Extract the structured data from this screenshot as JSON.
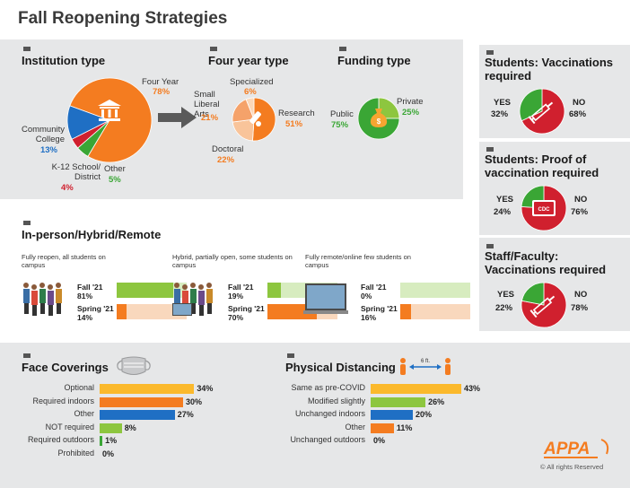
{
  "page_title": "Fall Reopening Strategies",
  "sections": {
    "institution_type": "Institution type",
    "four_year_type": "Four year type",
    "funding_type": "Funding type",
    "in_person": "In-person/Hybrid/Remote",
    "face_coverings": "Face Coverings",
    "physical_distancing": "Physical Distancing",
    "students_vacc": "Students: Vaccinations required",
    "students_proof": "Students: Proof of vaccination required",
    "staff_vacc": "Staff/Faculty: Vaccinations required"
  },
  "icons": {
    "cdc": "CDC",
    "six_ft": "6 ft."
  },
  "footer": {
    "logo": "APPA",
    "rights": "© All rights Reserved"
  },
  "colors": {
    "orange": "#f47c20",
    "blue": "#1f6fc4",
    "red": "#d0202e",
    "green": "#3aa635",
    "yellow": "#fbb92c",
    "lime": "#8dc63f",
    "peach": "#f9c49a",
    "pale_green": "#d7ecbf"
  },
  "chart_data": [
    {
      "type": "pie",
      "id": "institution",
      "title": "Institution type",
      "slices": [
        {
          "label": "Four Year",
          "value": 78,
          "pct_label": "78%",
          "color": "#f47c20"
        },
        {
          "label": "Other",
          "value": 5,
          "pct_label": "5%",
          "color": "#3aa635"
        },
        {
          "label": "K-12 School/ District",
          "value": 4,
          "pct_label": "4%",
          "color": "#d0202e"
        },
        {
          "label": "Community College",
          "value": 13,
          "pct_label": "13%",
          "color": "#1f6fc4"
        }
      ]
    },
    {
      "type": "pie",
      "id": "four_year",
      "title": "Four year type",
      "slices": [
        {
          "label": "Research",
          "value": 51,
          "pct_label": "51%",
          "color": "#f47c20"
        },
        {
          "label": "Doctoral",
          "value": 22,
          "pct_label": "22%",
          "color": "#f9c49a"
        },
        {
          "label": "Small Liberal Arts",
          "value": 21,
          "pct_label": "21%",
          "color": "#f5a26a"
        },
        {
          "label": "Specialized",
          "value": 6,
          "pct_label": "6%",
          "color": "#fbd7b8"
        }
      ]
    },
    {
      "type": "pie",
      "id": "funding",
      "title": "Funding type",
      "slices": [
        {
          "label": "Private",
          "value": 25,
          "pct_label": "25%",
          "color": "#8dc63f"
        },
        {
          "label": "Public",
          "value": 75,
          "pct_label": "75%",
          "color": "#3aa635"
        }
      ]
    },
    {
      "type": "pie",
      "id": "students_vacc",
      "title": "Students: Vaccinations required",
      "slices": [
        {
          "label": "NO",
          "value": 68,
          "pct_label": "68%",
          "color": "#d0202e"
        },
        {
          "label": "YES",
          "value": 32,
          "pct_label": "32%",
          "color": "#3aa635"
        }
      ]
    },
    {
      "type": "pie",
      "id": "students_proof",
      "title": "Students: Proof of vaccination required",
      "slices": [
        {
          "label": "NO",
          "value": 76,
          "pct_label": "76%",
          "color": "#d0202e"
        },
        {
          "label": "YES",
          "value": 24,
          "pct_label": "24%",
          "color": "#3aa635"
        }
      ]
    },
    {
      "type": "pie",
      "id": "staff_vacc",
      "title": "Staff/Faculty: Vaccinations required",
      "slices": [
        {
          "label": "NO",
          "value": 78,
          "pct_label": "78%",
          "color": "#d0202e"
        },
        {
          "label": "YES",
          "value": 22,
          "pct_label": "22%",
          "color": "#3aa635"
        }
      ]
    },
    {
      "type": "bar",
      "id": "in_person",
      "title": "In-person/Hybrid/Remote",
      "groups": [
        {
          "caption": "Fully reopen, all students on campus",
          "rows": [
            {
              "label": "Fall '21",
              "value": 81,
              "pct_label": "81%",
              "color": "#8dc63f"
            },
            {
              "label": "Spring '21",
              "value": 14,
              "pct_label": "14%",
              "color": "#f47c20"
            }
          ]
        },
        {
          "caption": "Hybrid, partially open, some students on campus",
          "rows": [
            {
              "label": "Fall '21",
              "value": 19,
              "pct_label": "19%",
              "color": "#8dc63f"
            },
            {
              "label": "Spring '21",
              "value": 70,
              "pct_label": "70%",
              "color": "#f47c20"
            }
          ]
        },
        {
          "caption": "Fully remote/online few students on campus",
          "rows": [
            {
              "label": "Fall '21",
              "value": 0,
              "pct_label": "0%",
              "color": "#8dc63f"
            },
            {
              "label": "Spring '21",
              "value": 16,
              "pct_label": "16%",
              "color": "#f47c20"
            }
          ]
        }
      ]
    },
    {
      "type": "bar",
      "id": "face_coverings",
      "title": "Face Coverings",
      "categories": [
        "Optional",
        "Required indoors",
        "Other",
        "NOT required",
        "Required outdoors",
        "Prohibited"
      ],
      "values": [
        34,
        30,
        27,
        8,
        1,
        0
      ],
      "pct_labels": [
        "34%",
        "30%",
        "27%",
        "8%",
        "1%",
        "0%"
      ],
      "colors": [
        "#fbb92c",
        "#f47c20",
        "#1f6fc4",
        "#8dc63f",
        "#3aa635",
        "#3aa635"
      ]
    },
    {
      "type": "bar",
      "id": "physical_distancing",
      "title": "Physical Distancing",
      "categories": [
        "Same as pre-COVID",
        "Modified slightly",
        "Unchanged indoors",
        "Other",
        "Unchanged outdoors"
      ],
      "values": [
        43,
        26,
        20,
        11,
        0
      ],
      "pct_labels": [
        "43%",
        "26%",
        "20%",
        "11%",
        "0%"
      ],
      "colors": [
        "#fbb92c",
        "#8dc63f",
        "#1f6fc4",
        "#f47c20",
        "#3aa635"
      ]
    }
  ]
}
